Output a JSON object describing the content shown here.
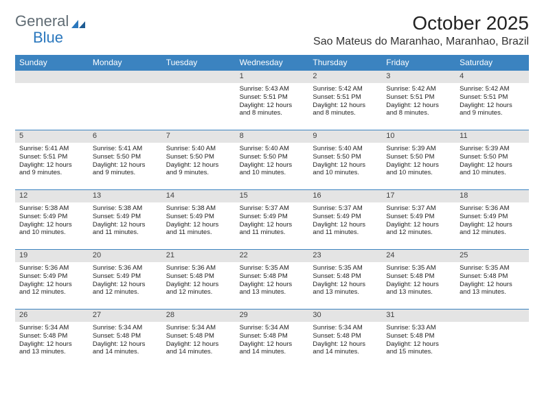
{
  "logo": {
    "text1": "General",
    "text2": "Blue"
  },
  "title": "October 2025",
  "subtitle": "Sao Mateus do Maranhao, Maranhao, Brazil",
  "colors": {
    "header_bg": "#3b83c0",
    "header_text": "#ffffff",
    "daynum_bg": "#e4e4e4",
    "daynum_text": "#3f3f3f",
    "body_text": "#222222",
    "rule": "#3b83c0",
    "logo_gray": "#5f6b73",
    "logo_blue": "#2a77bd"
  },
  "dow": [
    "Sunday",
    "Monday",
    "Tuesday",
    "Wednesday",
    "Thursday",
    "Friday",
    "Saturday"
  ],
  "weeks": [
    [
      {
        "blank": true
      },
      {
        "blank": true
      },
      {
        "blank": true
      },
      {
        "n": "1",
        "sunrise": "Sunrise: 5:43 AM",
        "sunset": "Sunset: 5:51 PM",
        "d1": "Daylight: 12 hours",
        "d2": "and 8 minutes."
      },
      {
        "n": "2",
        "sunrise": "Sunrise: 5:42 AM",
        "sunset": "Sunset: 5:51 PM",
        "d1": "Daylight: 12 hours",
        "d2": "and 8 minutes."
      },
      {
        "n": "3",
        "sunrise": "Sunrise: 5:42 AM",
        "sunset": "Sunset: 5:51 PM",
        "d1": "Daylight: 12 hours",
        "d2": "and 8 minutes."
      },
      {
        "n": "4",
        "sunrise": "Sunrise: 5:42 AM",
        "sunset": "Sunset: 5:51 PM",
        "d1": "Daylight: 12 hours",
        "d2": "and 9 minutes."
      }
    ],
    [
      {
        "n": "5",
        "sunrise": "Sunrise: 5:41 AM",
        "sunset": "Sunset: 5:51 PM",
        "d1": "Daylight: 12 hours",
        "d2": "and 9 minutes."
      },
      {
        "n": "6",
        "sunrise": "Sunrise: 5:41 AM",
        "sunset": "Sunset: 5:50 PM",
        "d1": "Daylight: 12 hours",
        "d2": "and 9 minutes."
      },
      {
        "n": "7",
        "sunrise": "Sunrise: 5:40 AM",
        "sunset": "Sunset: 5:50 PM",
        "d1": "Daylight: 12 hours",
        "d2": "and 9 minutes."
      },
      {
        "n": "8",
        "sunrise": "Sunrise: 5:40 AM",
        "sunset": "Sunset: 5:50 PM",
        "d1": "Daylight: 12 hours",
        "d2": "and 10 minutes."
      },
      {
        "n": "9",
        "sunrise": "Sunrise: 5:40 AM",
        "sunset": "Sunset: 5:50 PM",
        "d1": "Daylight: 12 hours",
        "d2": "and 10 minutes."
      },
      {
        "n": "10",
        "sunrise": "Sunrise: 5:39 AM",
        "sunset": "Sunset: 5:50 PM",
        "d1": "Daylight: 12 hours",
        "d2": "and 10 minutes."
      },
      {
        "n": "11",
        "sunrise": "Sunrise: 5:39 AM",
        "sunset": "Sunset: 5:50 PM",
        "d1": "Daylight: 12 hours",
        "d2": "and 10 minutes."
      }
    ],
    [
      {
        "n": "12",
        "sunrise": "Sunrise: 5:38 AM",
        "sunset": "Sunset: 5:49 PM",
        "d1": "Daylight: 12 hours",
        "d2": "and 10 minutes."
      },
      {
        "n": "13",
        "sunrise": "Sunrise: 5:38 AM",
        "sunset": "Sunset: 5:49 PM",
        "d1": "Daylight: 12 hours",
        "d2": "and 11 minutes."
      },
      {
        "n": "14",
        "sunrise": "Sunrise: 5:38 AM",
        "sunset": "Sunset: 5:49 PM",
        "d1": "Daylight: 12 hours",
        "d2": "and 11 minutes."
      },
      {
        "n": "15",
        "sunrise": "Sunrise: 5:37 AM",
        "sunset": "Sunset: 5:49 PM",
        "d1": "Daylight: 12 hours",
        "d2": "and 11 minutes."
      },
      {
        "n": "16",
        "sunrise": "Sunrise: 5:37 AM",
        "sunset": "Sunset: 5:49 PM",
        "d1": "Daylight: 12 hours",
        "d2": "and 11 minutes."
      },
      {
        "n": "17",
        "sunrise": "Sunrise: 5:37 AM",
        "sunset": "Sunset: 5:49 PM",
        "d1": "Daylight: 12 hours",
        "d2": "and 12 minutes."
      },
      {
        "n": "18",
        "sunrise": "Sunrise: 5:36 AM",
        "sunset": "Sunset: 5:49 PM",
        "d1": "Daylight: 12 hours",
        "d2": "and 12 minutes."
      }
    ],
    [
      {
        "n": "19",
        "sunrise": "Sunrise: 5:36 AM",
        "sunset": "Sunset: 5:49 PM",
        "d1": "Daylight: 12 hours",
        "d2": "and 12 minutes."
      },
      {
        "n": "20",
        "sunrise": "Sunrise: 5:36 AM",
        "sunset": "Sunset: 5:49 PM",
        "d1": "Daylight: 12 hours",
        "d2": "and 12 minutes."
      },
      {
        "n": "21",
        "sunrise": "Sunrise: 5:36 AM",
        "sunset": "Sunset: 5:48 PM",
        "d1": "Daylight: 12 hours",
        "d2": "and 12 minutes."
      },
      {
        "n": "22",
        "sunrise": "Sunrise: 5:35 AM",
        "sunset": "Sunset: 5:48 PM",
        "d1": "Daylight: 12 hours",
        "d2": "and 13 minutes."
      },
      {
        "n": "23",
        "sunrise": "Sunrise: 5:35 AM",
        "sunset": "Sunset: 5:48 PM",
        "d1": "Daylight: 12 hours",
        "d2": "and 13 minutes."
      },
      {
        "n": "24",
        "sunrise": "Sunrise: 5:35 AM",
        "sunset": "Sunset: 5:48 PM",
        "d1": "Daylight: 12 hours",
        "d2": "and 13 minutes."
      },
      {
        "n": "25",
        "sunrise": "Sunrise: 5:35 AM",
        "sunset": "Sunset: 5:48 PM",
        "d1": "Daylight: 12 hours",
        "d2": "and 13 minutes."
      }
    ],
    [
      {
        "n": "26",
        "sunrise": "Sunrise: 5:34 AM",
        "sunset": "Sunset: 5:48 PM",
        "d1": "Daylight: 12 hours",
        "d2": "and 13 minutes."
      },
      {
        "n": "27",
        "sunrise": "Sunrise: 5:34 AM",
        "sunset": "Sunset: 5:48 PM",
        "d1": "Daylight: 12 hours",
        "d2": "and 14 minutes."
      },
      {
        "n": "28",
        "sunrise": "Sunrise: 5:34 AM",
        "sunset": "Sunset: 5:48 PM",
        "d1": "Daylight: 12 hours",
        "d2": "and 14 minutes."
      },
      {
        "n": "29",
        "sunrise": "Sunrise: 5:34 AM",
        "sunset": "Sunset: 5:48 PM",
        "d1": "Daylight: 12 hours",
        "d2": "and 14 minutes."
      },
      {
        "n": "30",
        "sunrise": "Sunrise: 5:34 AM",
        "sunset": "Sunset: 5:48 PM",
        "d1": "Daylight: 12 hours",
        "d2": "and 14 minutes."
      },
      {
        "n": "31",
        "sunrise": "Sunrise: 5:33 AM",
        "sunset": "Sunset: 5:48 PM",
        "d1": "Daylight: 12 hours",
        "d2": "and 15 minutes."
      },
      {
        "blank": true
      }
    ]
  ]
}
